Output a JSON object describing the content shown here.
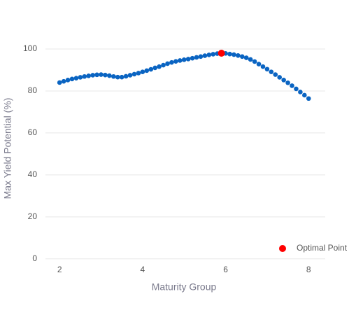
{
  "chart_data": {
    "type": "scatter",
    "xlabel": "Maturity Group",
    "ylabel": "Max Yield Potential (%)",
    "xlim": [
      1.66,
      8.4
    ],
    "ylim": [
      -3.4,
      110
    ],
    "xticks": [
      2,
      4,
      6,
      8
    ],
    "yticks": [
      0,
      20,
      40,
      60,
      80,
      100
    ],
    "grid": true,
    "legend": "lower right",
    "series": [
      {
        "color": "#0a64c2",
        "x": [
          2.0,
          2.1,
          2.2,
          2.3,
          2.4,
          2.5,
          2.6,
          2.7,
          2.8,
          2.9,
          3.0,
          3.1,
          3.2,
          3.3,
          3.4,
          3.5,
          3.6,
          3.7,
          3.8,
          3.9,
          4.0,
          4.1,
          4.2,
          4.3,
          4.4,
          4.5,
          4.6,
          4.7,
          4.8,
          4.9,
          5.0,
          5.1,
          5.2,
          5.3,
          5.4,
          5.5,
          5.6,
          5.7,
          5.8,
          5.9,
          6.0,
          6.1,
          6.2,
          6.3,
          6.4,
          6.5,
          6.6,
          6.7,
          6.8,
          6.9,
          7.0,
          7.1,
          7.2,
          7.3,
          7.4,
          7.5,
          7.6,
          7.7,
          7.8,
          7.9,
          8.0
        ],
        "values": [
          84.0,
          84.6,
          85.2,
          85.7,
          86.1,
          86.5,
          86.9,
          87.2,
          87.5,
          87.7,
          87.8,
          87.6,
          87.3,
          86.9,
          86.6,
          86.6,
          87.0,
          87.5,
          88.0,
          88.5,
          89.1,
          89.7,
          90.3,
          91.0,
          91.6,
          92.3,
          93.0,
          93.6,
          94.1,
          94.5,
          94.9,
          95.2,
          95.6,
          96.0,
          96.4,
          96.8,
          97.2,
          97.5,
          97.8,
          98.0,
          97.9,
          97.6,
          97.3,
          96.9,
          96.4,
          95.8,
          95.0,
          94.0,
          92.8,
          91.6,
          90.4,
          89.1,
          87.8,
          86.5,
          85.2,
          83.9,
          82.5,
          81.0,
          79.5,
          78.0,
          76.4
        ]
      },
      {
        "name": "Optimal Point",
        "color": "#ff0000",
        "x": [
          5.9
        ],
        "values": [
          98.0
        ]
      }
    ]
  }
}
